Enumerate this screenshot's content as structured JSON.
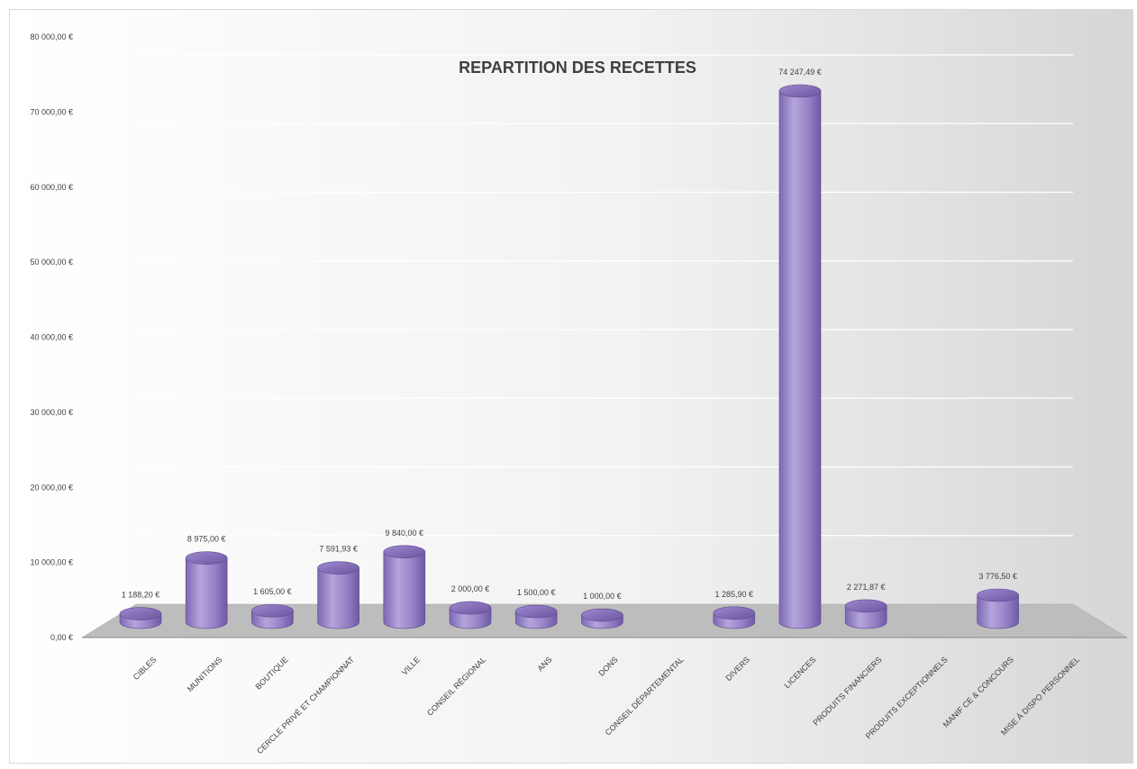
{
  "chart_data": {
    "type": "bar",
    "title": "REPARTITION DES RECETTES",
    "xlabel": "",
    "ylabel": "",
    "ylim": [
      0,
      80000
    ],
    "y_ticks": [
      "0,00 €",
      "10 000,00 €",
      "20 000,00 €",
      "30 000,00 €",
      "40 000,00 €",
      "50 000,00 €",
      "60 000,00 €",
      "70 000,00 €",
      "80 000,00 €"
    ],
    "categories": [
      "CIBLES",
      "MUNITIONS",
      "BOUTIQUE",
      "CERCLE PRIVÉ ET CHAMPIONNAT",
      "VILLE",
      "CONSEIL RÉGIONAL",
      "ANS",
      "DONS",
      "CONSEIL DÉPARTEMENTAL",
      "DIVERS",
      "LICENCES",
      "PRODUITS FINANCIERS",
      "PRODUITS EXCEPTIONNELS",
      "MANIF CE & CONCOURS",
      "MISE À DISPO PERSONNEL"
    ],
    "values": [
      1188.2,
      8975.0,
      1605.0,
      7591.93,
      9840.0,
      2000.0,
      1500.0,
      1000.0,
      0,
      1285.9,
      74247.49,
      2271.87,
      0,
      3776.5,
      0
    ],
    "data_labels": [
      "1 188,20 €",
      "8 975,00 €",
      "1 605,00 €",
      "7 591,93 €",
      "9 840,00 €",
      "2 000,00 €",
      "1 500,00 €",
      "1 000,00 €",
      "",
      "1 285,90 €",
      "74 247,49 €",
      "2 271,87 €",
      "",
      "3 776,50 €",
      ""
    ],
    "grid": true,
    "style": "3d-cylinder",
    "colors": {
      "bar": "#9a88c9",
      "bar_dark": "#6f5aa5",
      "bar_top": "#8b76bf",
      "floor": "#bdbdbd",
      "grid": "#ffffff"
    }
  }
}
